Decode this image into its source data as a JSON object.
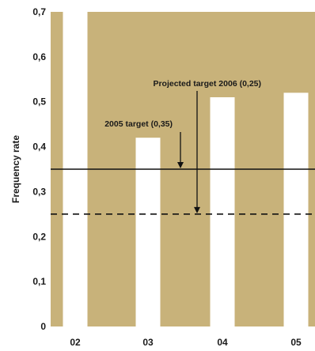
{
  "chart_data": {
    "type": "bar",
    "categories": [
      "02",
      "03",
      "04",
      "05"
    ],
    "values": [
      0.7,
      0.42,
      0.51,
      0.52
    ],
    "ylabel": "Frequency rate",
    "xlabel": "",
    "ylim": [
      0,
      0.7
    ],
    "yticks": [
      "0",
      "0,1",
      "0,2",
      "0,3",
      "0,4",
      "0,5",
      "0,6",
      "0,7"
    ],
    "grid": false,
    "reference_lines": [
      {
        "value": 0.35,
        "style": "solid",
        "label": "2005 target (0,35)"
      },
      {
        "value": 0.25,
        "style": "dashed",
        "label": "Projected target 2006 (0,25)"
      }
    ],
    "colors": {
      "background_band": "#c8b27a",
      "bar": "#ffffff",
      "line": "#111111"
    }
  }
}
